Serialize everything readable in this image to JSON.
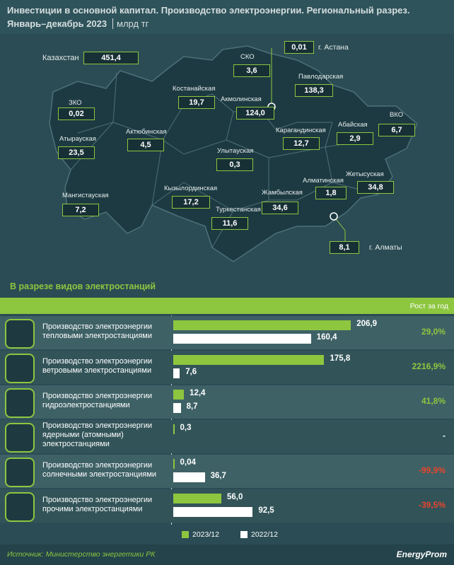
{
  "header": {
    "title": "Инвестиции в основной капитал. Производство электроэнергии. Региональный разрез.",
    "subtitle": "Январь–декабрь 2023",
    "unit": "млрд тг"
  },
  "map": {
    "total": {
      "label": "Казахстан",
      "value": "451,4"
    },
    "regions": [
      {
        "label": "ЗКО",
        "value": "0,02"
      },
      {
        "label": "Атырауская",
        "value": "23,5"
      },
      {
        "label": "Мангистауская",
        "value": "7,2"
      },
      {
        "label": "Актюбинская",
        "value": "4,5"
      },
      {
        "label": "Костанайская",
        "value": "19,7"
      },
      {
        "label": "СКО",
        "value": "3,6"
      },
      {
        "label": "Акмолинская",
        "value": "124,0"
      },
      {
        "label": "Павлодарская",
        "value": "138,3"
      },
      {
        "label": "Карагандинская",
        "value": "12,7"
      },
      {
        "label": "Абайская",
        "value": "2,9"
      },
      {
        "label": "ВКО",
        "value": "6,7"
      },
      {
        "label": "Улытауская",
        "value": "0,3"
      },
      {
        "label": "Кызылординская",
        "value": "17,2"
      },
      {
        "label": "Туркестанская",
        "value": "11,6"
      },
      {
        "label": "Жамбылская",
        "value": "34,6"
      },
      {
        "label": "Алматинская",
        "value": "1,8"
      },
      {
        "label": "Жетысуская",
        "value": "34,8"
      }
    ],
    "cities": [
      {
        "label": "г. Астана",
        "value": "0,01"
      },
      {
        "label": "г. Алматы",
        "value": "8,1"
      }
    ]
  },
  "chart_data": {
    "type": "bar",
    "title": "В разрезе видов электростанций",
    "growth_header": "Рост за год",
    "categories": [
      "Производство электроэнергии тепловыми электростанциями",
      "Производство электроэнергии ветровыми электростанциями",
      "Производство электроэнергии гидроэлектростанциями",
      "Производство электроэнергии ядерными (атомными) электростанциями",
      "Производство электроэнергии солнечными электростанциями",
      "Производство электроэнергии прочими электростанциями"
    ],
    "series": [
      {
        "name": "2023/12",
        "color": "#8dc63f",
        "values": [
          206.9,
          175.8,
          12.4,
          0.3,
          0.04,
          56.0
        ],
        "value_labels": [
          "206,9",
          "175,8",
          "12,4",
          "0,3",
          "0,04",
          "56,0"
        ]
      },
      {
        "name": "2022/12",
        "color": "#ffffff",
        "values": [
          160.4,
          7.6,
          8.7,
          null,
          36.7,
          92.5
        ],
        "value_labels": [
          "160,4",
          "7,6",
          "8,7",
          null,
          "36,7",
          "92,5"
        ]
      }
    ],
    "growth": [
      29.0,
      2216.9,
      41.8,
      null,
      -99.9,
      -39.5
    ],
    "growth_labels": [
      "29,0%",
      "2216,9%",
      "41,8%",
      "-",
      "-99,9%",
      "-39,5%"
    ],
    "xlim": [
      0,
      210
    ]
  },
  "footer": {
    "source": "Источник: Министерство энергетики РК",
    "logo": "EnergyProm"
  }
}
